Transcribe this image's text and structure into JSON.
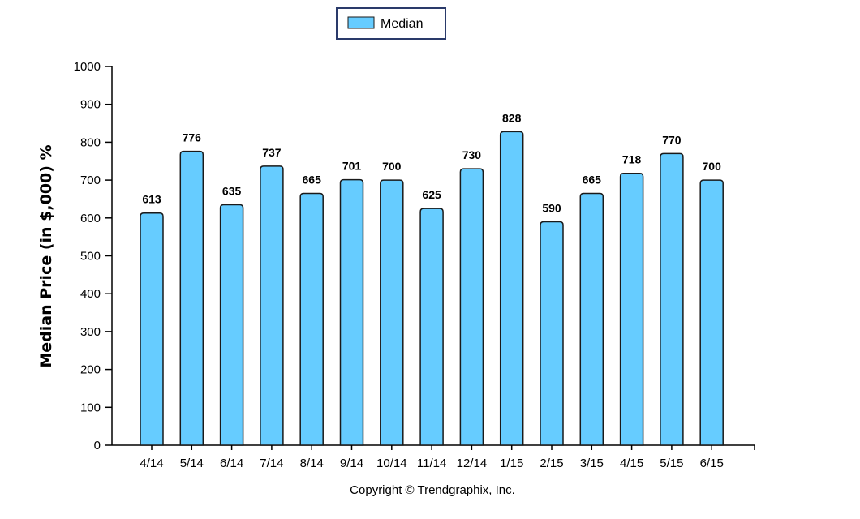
{
  "chart_data": {
    "type": "bar",
    "categories": [
      "4/14",
      "5/14",
      "6/14",
      "7/14",
      "8/14",
      "9/14",
      "10/14",
      "11/14",
      "12/14",
      "1/15",
      "2/15",
      "3/15",
      "4/15",
      "5/15",
      "6/15"
    ],
    "series": [
      {
        "name": "Median",
        "values": [
          613,
          776,
          635,
          737,
          665,
          701,
          700,
          625,
          730,
          828,
          590,
          665,
          718,
          770,
          700
        ],
        "color": "#66ccff"
      }
    ],
    "data_labels": [
      "613",
      "776",
      "635",
      "737",
      "665",
      "701",
      "700",
      "625",
      "730",
      "828",
      "590",
      "665",
      "718",
      "770",
      "700"
    ],
    "ylabel": "Median Price (in $,000) %",
    "xlabel": "",
    "ylim": [
      0,
      1000
    ],
    "yticks": [
      "0",
      "100",
      "200",
      "300",
      "400",
      "500",
      "600",
      "700",
      "800",
      "900",
      "1000"
    ],
    "grid": false,
    "legend_position": "top-center",
    "footer": "Copyright © Trendgraphix, Inc."
  },
  "colors": {
    "bar_fill": "#66ccff",
    "bar_stroke": "#1a1a1a",
    "axis": "#000000",
    "legend_border": "#2a3a6a"
  }
}
